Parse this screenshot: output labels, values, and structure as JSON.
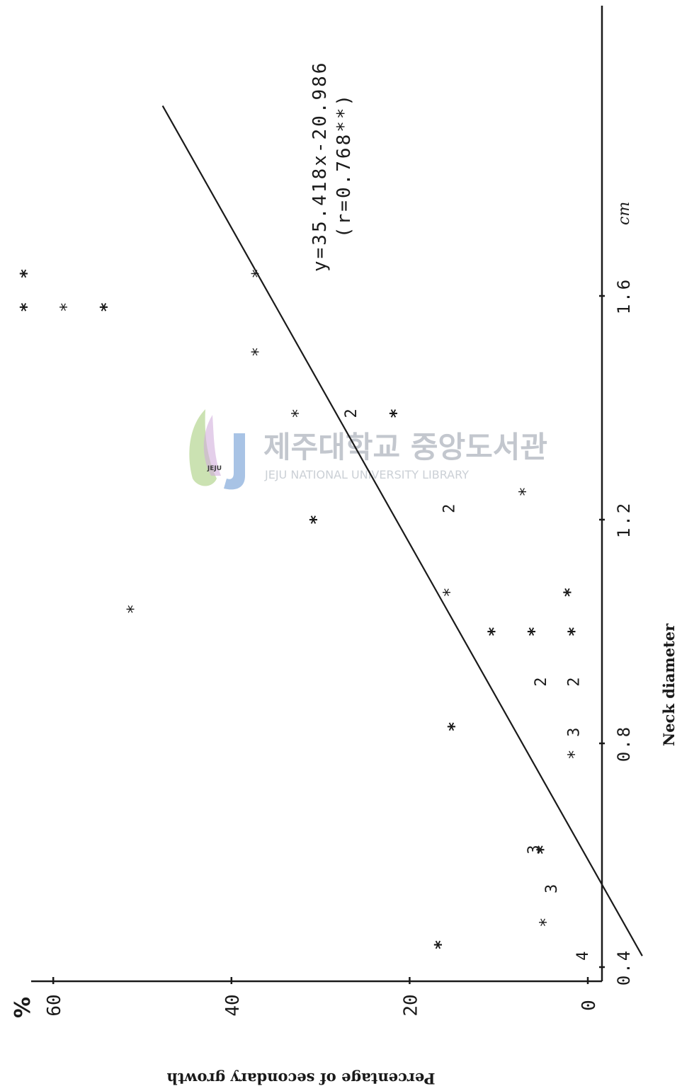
{
  "chart_data": {
    "type": "scatter",
    "orientation": "rotated 90° clockwise (x axis vertical, y axis horizontal)",
    "xlabel": "Neck diameter",
    "ylabel": "Percentage of secondary growth",
    "x_unit": "cm",
    "y_unit": "%",
    "x_ticks": [
      {
        "value": 0.4,
        "label": "0.4"
      },
      {
        "value": 0.8,
        "label": "0.8"
      },
      {
        "value": 1.2,
        "label": "1.2"
      },
      {
        "value": 1.6,
        "label": "1.6"
      }
    ],
    "y_ticks": [
      {
        "value": 0,
        "label": "0"
      },
      {
        "value": 20,
        "label": "20"
      },
      {
        "value": 40,
        "label": "40"
      },
      {
        "value": 60,
        "label": "60"
      }
    ],
    "xlim": [
      0.36,
      1.74
    ],
    "ylim": [
      -1,
      63
    ],
    "regression": {
      "equation": "y=35.418x-20.986",
      "r_label": "(r=0.768**)",
      "slope": 35.418,
      "intercept": -20.986,
      "x_range": [
        0.42,
        1.94
      ]
    },
    "points": [
      {
        "x": 0.42,
        "y": 0.5,
        "m": "4",
        "s": "num"
      },
      {
        "x": 0.44,
        "y": 16.5,
        "m": "*",
        "s": "solid"
      },
      {
        "x": 0.48,
        "y": 4.7,
        "m": "*",
        "s": "light"
      },
      {
        "x": 0.54,
        "y": 4,
        "m": "3",
        "s": "num"
      },
      {
        "x": 0.61,
        "y": 6,
        "m": "3",
        "s": "num"
      },
      {
        "x": 0.61,
        "y": 5,
        "m": "*",
        "s": "solid"
      },
      {
        "x": 0.78,
        "y": 1.5,
        "m": "*",
        "s": "light"
      },
      {
        "x": 0.82,
        "y": 1.5,
        "m": "3",
        "s": "num"
      },
      {
        "x": 0.83,
        "y": 15,
        "m": "*",
        "s": "solid"
      },
      {
        "x": 0.91,
        "y": 1.5,
        "m": "2",
        "s": "num"
      },
      {
        "x": 0.91,
        "y": 5.2,
        "m": "2",
        "s": "num"
      },
      {
        "x": 1,
        "y": 1.5,
        "m": "*",
        "s": "solid"
      },
      {
        "x": 1,
        "y": 6,
        "m": "*",
        "s": "solid"
      },
      {
        "x": 1,
        "y": 10.5,
        "m": "*",
        "s": "solid"
      },
      {
        "x": 1.07,
        "y": 2,
        "m": "*",
        "s": "solid"
      },
      {
        "x": 1.07,
        "y": 15.5,
        "m": "*",
        "s": "light"
      },
      {
        "x": 1.04,
        "y": 51,
        "m": "*",
        "s": "light"
      },
      {
        "x": 1.2,
        "y": 30.5,
        "m": "*",
        "s": "solid"
      },
      {
        "x": 1.22,
        "y": 15.5,
        "m": "2",
        "s": "num"
      },
      {
        "x": 1.25,
        "y": 7,
        "m": "*",
        "s": "light"
      },
      {
        "x": 1.39,
        "y": 21.5,
        "m": "*",
        "s": "solid"
      },
      {
        "x": 1.39,
        "y": 26.5,
        "m": "2",
        "s": "num"
      },
      {
        "x": 1.39,
        "y": 32.5,
        "m": "*",
        "s": "light"
      },
      {
        "x": 1.5,
        "y": 37,
        "m": "*",
        "s": "light"
      },
      {
        "x": 1.58,
        "y": 54,
        "m": "*",
        "s": "solid"
      },
      {
        "x": 1.58,
        "y": 58.5,
        "m": "*",
        "s": "light"
      },
      {
        "x": 1.58,
        "y": 63,
        "m": "*",
        "s": "solid"
      },
      {
        "x": 1.64,
        "y": 37,
        "m": "*",
        "s": "light"
      },
      {
        "x": 1.64,
        "y": 63,
        "m": "*",
        "s": "solid"
      }
    ],
    "grid": false,
    "legend": "none"
  },
  "watermark": {
    "korean": "제주대학교 중앙도서관",
    "english": "JEJU NATIONAL UNIVERSITY LIBRARY",
    "logo_text": "JEJU"
  },
  "colors": {
    "ink": "#1a1a1a",
    "watermark_text": "#b9bec6",
    "watermark_logo_blue": "#7fa7d8",
    "watermark_logo_green": "#a9cf7f"
  }
}
